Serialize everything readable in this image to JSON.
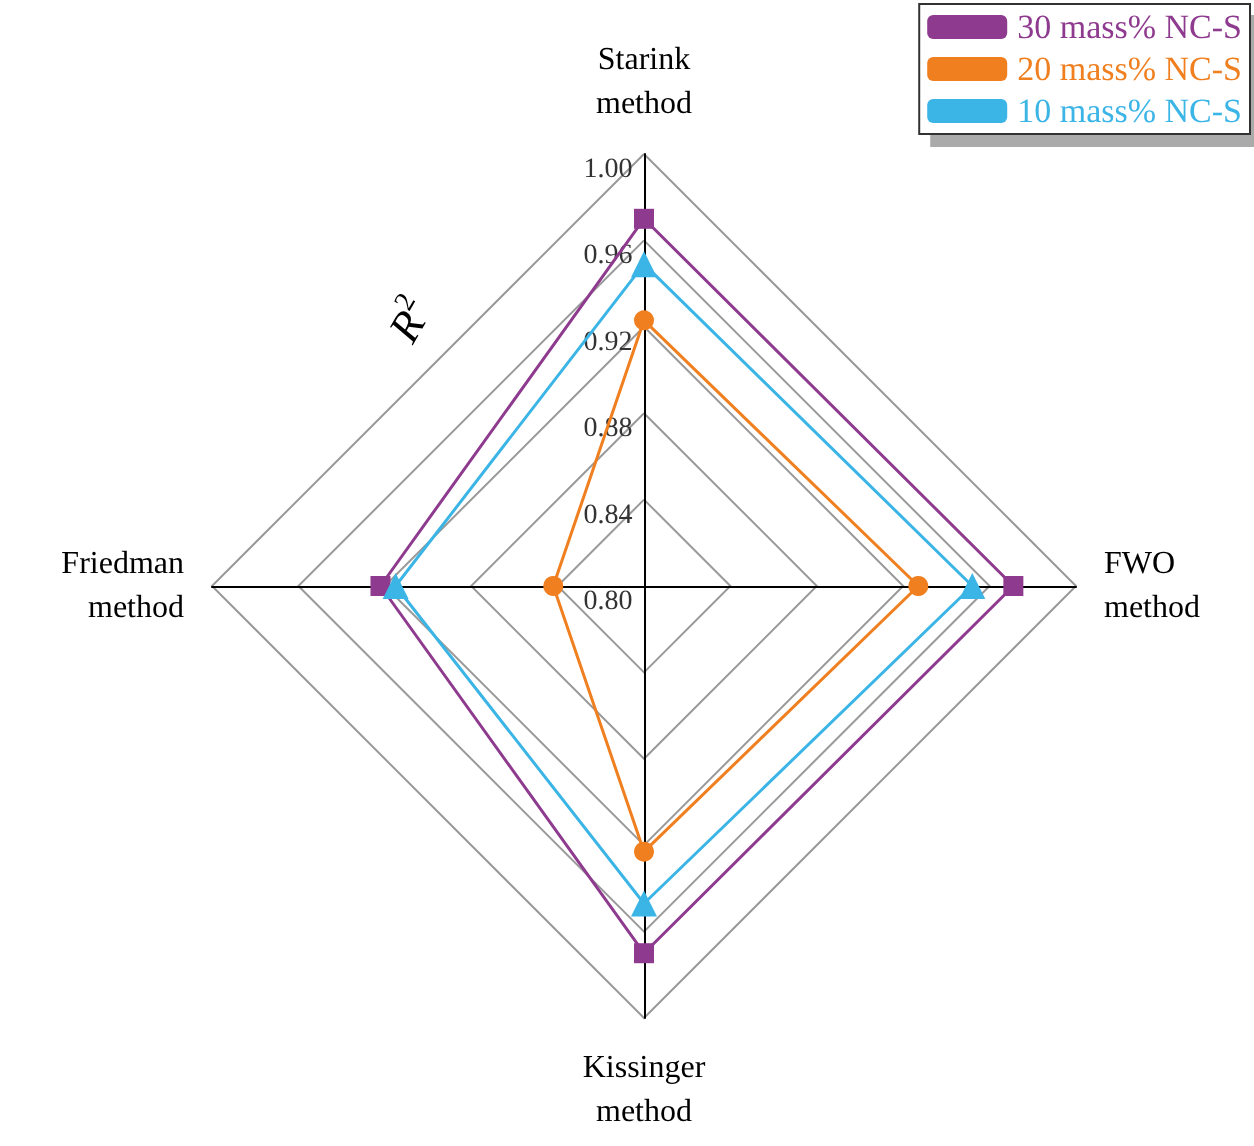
{
  "chart_data": {
    "type": "radar",
    "ylabel": "R$^{2}$",
    "categories": [
      "Starink\nmethod",
      "FWO\nmethod",
      "Kissinger\nmethod",
      "Friedman\nmethod"
    ],
    "series": [
      {
        "name": "30 mass% NC-S",
        "color": "#8e3a8e",
        "marker": "square",
        "values": [
          0.97,
          0.971,
          0.97,
          0.922
        ]
      },
      {
        "name": "20 mass% NC-S",
        "color": "#f07f1f",
        "marker": "circle",
        "values": [
          0.923,
          0.927,
          0.923,
          0.842
        ]
      },
      {
        "name": "10 mass% NC-S",
        "color": "#3bb4e6",
        "marker": "triangle",
        "values": [
          0.949,
          0.952,
          0.947,
          0.915
        ]
      }
    ],
    "ylim": [
      0.8,
      1.0
    ],
    "yticks": [
      {
        "value": 0.8,
        "label": "0.80"
      },
      {
        "value": 0.84,
        "label": "0.84"
      },
      {
        "value": 0.88,
        "label": "0.88"
      },
      {
        "value": 0.92,
        "label": "0.92"
      },
      {
        "value": 0.96,
        "label": "0.96"
      },
      {
        "value": 1.0,
        "label": "1.00"
      }
    ],
    "legend": "top right",
    "grid": true,
    "line_style": "solid"
  }
}
